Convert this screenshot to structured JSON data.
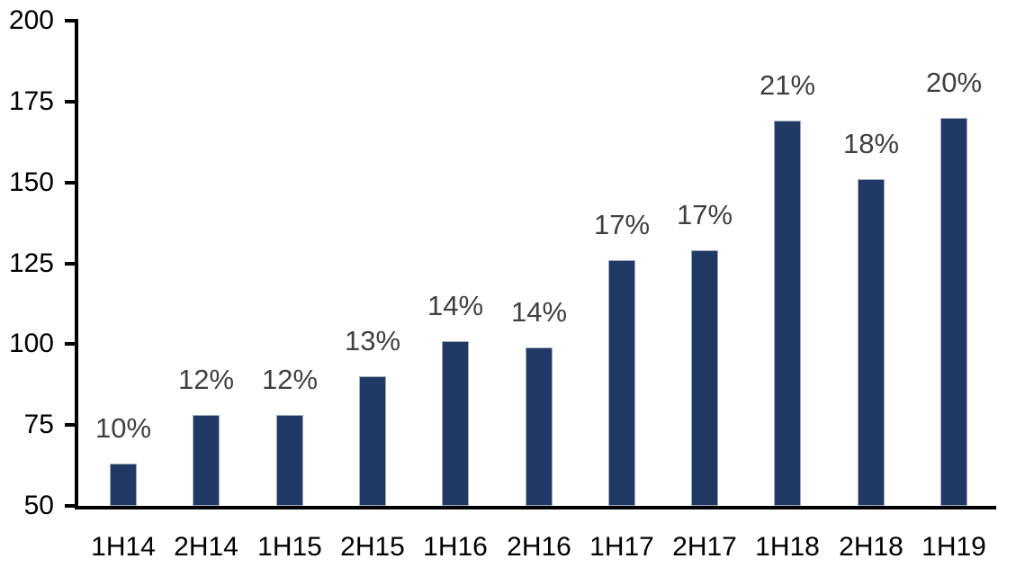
{
  "chart_data": {
    "type": "bar",
    "title": "",
    "xlabel": "",
    "ylabel": "",
    "categories": [
      "1H14",
      "2H14",
      "1H15",
      "2H15",
      "1H16",
      "2H16",
      "1H17",
      "2H17",
      "1H18",
      "2H18",
      "1H19"
    ],
    "values": [
      63,
      78,
      78,
      90,
      101,
      99,
      126,
      129,
      169,
      151,
      170
    ],
    "data_labels": [
      "10%",
      "12%",
      "12%",
      "13%",
      "14%",
      "14%",
      "17%",
      "17%",
      "21%",
      "18%",
      "20%"
    ],
    "ylim": [
      50,
      200
    ],
    "yticks": [
      50,
      75,
      100,
      125,
      150,
      175,
      200
    ],
    "grid": "off",
    "legend": "none",
    "bar_color": "#1F3864",
    "bar_edge_color": "#9FAAC0",
    "data_label_color": "#404040",
    "axis_text_color": "#000000",
    "axis_line_color": "#000000"
  }
}
